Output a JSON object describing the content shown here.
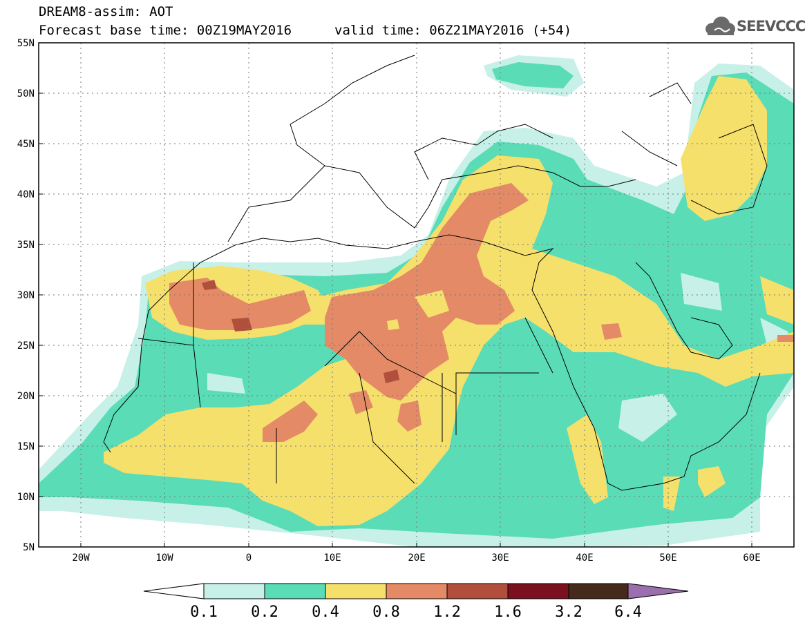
{
  "title": {
    "line1": "DREAM8-assim: AOT",
    "base": "Forecast base time: 00Z19MAY2016",
    "valid": "valid time: 06Z21MAY2016 (+54)"
  },
  "logo": {
    "text": "SEEVCCC",
    "icon": "cloud-logo-icon"
  },
  "map": {
    "lat_ticks": [
      "55N",
      "50N",
      "45N",
      "40N",
      "35N",
      "30N",
      "25N",
      "20N",
      "15N",
      "10N",
      "5N"
    ],
    "lon_ticks": [
      "20W",
      "10W",
      "0",
      "10E",
      "20E",
      "30E",
      "40E",
      "50E",
      "60E"
    ],
    "lat_range": [
      5,
      55
    ],
    "lon_range": [
      -25,
      65
    ]
  },
  "legend": {
    "bins": [
      {
        "color": "#c6f0e8"
      },
      {
        "color": "#5adcb7"
      },
      {
        "color": "#f5e06c"
      },
      {
        "color": "#e48a66"
      },
      {
        "color": "#b0503c"
      },
      {
        "color": "#7a1020"
      },
      {
        "color": "#45291a"
      }
    ],
    "low_arrow_color": "#ffffff",
    "high_arrow_color": "#9b6fae",
    "labels": [
      "0.1",
      "0.2",
      "0.4",
      "0.8",
      "1.2",
      "1.6",
      "3.2",
      "6.4"
    ]
  }
}
